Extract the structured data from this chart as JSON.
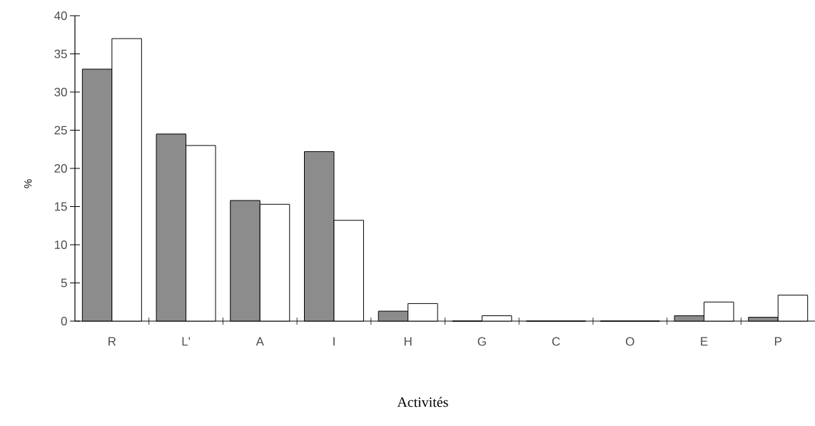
{
  "chart_data": {
    "type": "bar",
    "xlabel": "Activités",
    "ylabel": "%",
    "categories": [
      "R",
      "L'",
      "A",
      "I",
      "H",
      "G",
      "C",
      "O",
      "E",
      "P"
    ],
    "series": [
      {
        "color": "#8c8c8c",
        "values": [
          33,
          24.5,
          15.8,
          22.2,
          1.3,
          0,
          0,
          0,
          0.7,
          0.5
        ]
      },
      {
        "color": "#ffffff",
        "values": [
          37,
          23,
          15.3,
          13.2,
          2.3,
          0.7,
          0,
          0,
          2.5,
          3.4
        ]
      }
    ],
    "ylim": [
      0,
      40
    ],
    "yticks": [
      0,
      5,
      10,
      15,
      20,
      25,
      30,
      35,
      40
    ]
  }
}
